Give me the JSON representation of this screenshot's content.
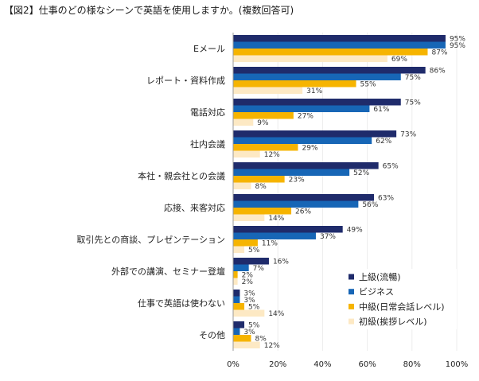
{
  "chart_data": {
    "type": "bar",
    "orientation": "horizontal",
    "title": "【図2】仕事のどの様なシーンで英語を使用しますか。(複数回答可)",
    "categories": [
      "Eメール",
      "レポート・資料作成",
      "電話対応",
      "社内会議",
      "本社・親会社との会議",
      "応接、来客対応",
      "取引先との商談、プレゼンテーション",
      "外部での講演、セミナー登壇",
      "仕事で英語は使わない",
      "その他"
    ],
    "series": [
      {
        "name": "上級(流暢)",
        "color": "#1f2b6b",
        "values": [
          95,
          86,
          75,
          73,
          65,
          63,
          49,
          16,
          3,
          5
        ]
      },
      {
        "name": "ビジネス",
        "color": "#1766b6",
        "values": [
          95,
          75,
          61,
          62,
          52,
          56,
          37,
          7,
          3,
          3
        ]
      },
      {
        "name": "中級(日常会話レベル)",
        "color": "#f6b400",
        "values": [
          87,
          55,
          27,
          29,
          23,
          26,
          11,
          2,
          5,
          8
        ]
      },
      {
        "name": "初級(挨拶レベル)",
        "color": "#fde9c4",
        "values": [
          69,
          31,
          9,
          12,
          8,
          14,
          5,
          2,
          14,
          12
        ]
      }
    ],
    "xlim": [
      0,
      100
    ],
    "xticks": [
      0,
      20,
      40,
      60,
      80,
      100
    ],
    "xtick_labels": [
      "0%",
      "20%",
      "40%",
      "60%",
      "80%",
      "100%"
    ],
    "data_label_suffix": "%",
    "grid": true,
    "legend_position": "lower-right"
  }
}
